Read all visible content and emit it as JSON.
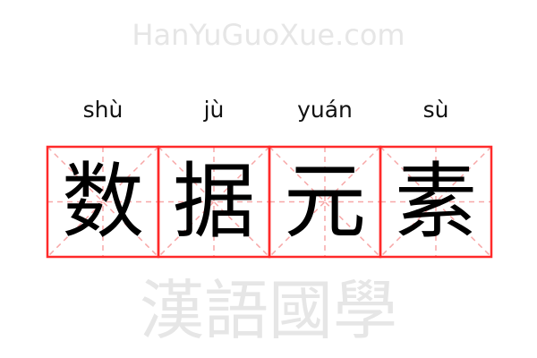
{
  "word": [
    {
      "pinyin": "shù",
      "hanzi": "数"
    },
    {
      "pinyin": "jù",
      "hanzi": "据"
    },
    {
      "pinyin": "yuán",
      "hanzi": "元"
    },
    {
      "pinyin": "sù",
      "hanzi": "素"
    }
  ],
  "watermark": {
    "chinese": "漢語國學",
    "latin": "HanYuGuoXue.com"
  },
  "colors": {
    "grid_border": "#ff2a2a",
    "grid_guide": "#f7a8a8",
    "text": "#000000",
    "watermark": "#e6e6e6"
  }
}
